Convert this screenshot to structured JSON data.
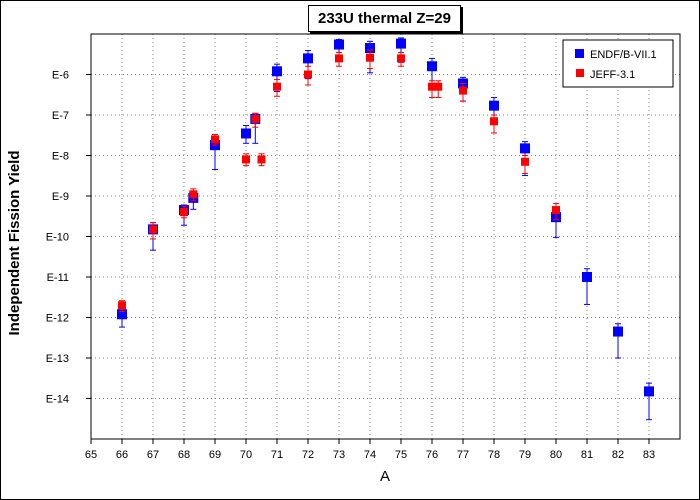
{
  "chart_data": {
    "type": "scatter",
    "title": "233U thermal Z=29",
    "xlabel": "A",
    "ylabel": "Independent Fission Yield",
    "y_scale": "log",
    "xlim": [
      65,
      84
    ],
    "ylim": [
      1e-15,
      1e-05
    ],
    "x_ticks": [
      65,
      66,
      67,
      68,
      69,
      70,
      71,
      72,
      73,
      74,
      75,
      76,
      77,
      78,
      79,
      80,
      81,
      82,
      83
    ],
    "y_ticks": [
      {
        "label": "E-6",
        "value": 1e-06
      },
      {
        "label": "E-7",
        "value": 1e-07
      },
      {
        "label": "E-8",
        "value": 1e-08
      },
      {
        "label": "E-9",
        "value": 1e-09
      },
      {
        "label": "E-10",
        "value": 1e-10
      },
      {
        "label": "E-11",
        "value": 1e-11
      },
      {
        "label": "E-12",
        "value": 1e-12
      },
      {
        "label": "E-13",
        "value": 1e-13
      },
      {
        "label": "E-14",
        "value": 1e-14
      }
    ],
    "grid": true,
    "legend_position": "top-right",
    "series": [
      {
        "name": "ENDF/B-VII.1",
        "color": "#0000ff",
        "marker": "square",
        "points": [
          {
            "x": 66,
            "y": 1.2e-12,
            "err_lo": 5.8e-13,
            "err_hi": 1.8e-12
          },
          {
            "x": 67,
            "y": 1.5e-10,
            "err_lo": 4.6e-11,
            "err_hi": 2.2e-10
          },
          {
            "x": 68,
            "y": 4.5e-10,
            "err_lo": 1.9e-10,
            "err_hi": 6e-10
          },
          {
            "x": 68.3,
            "y": 9e-10,
            "err_lo": 4.7e-10,
            "err_hi": 1.3e-09
          },
          {
            "x": 69,
            "y": 1.8e-08,
            "err_lo": 4.5e-09,
            "err_hi": 2.5e-08
          },
          {
            "x": 70,
            "y": 3.5e-08,
            "err_lo": 2e-08,
            "err_hi": 5.5e-08
          },
          {
            "x": 70.3,
            "y": 8e-08,
            "err_lo": 2e-08,
            "err_hi": 1.1e-07
          },
          {
            "x": 71,
            "y": 1.2e-06,
            "err_lo": 3.8e-07,
            "err_hi": 1.8e-06
          },
          {
            "x": 72,
            "y": 2.5e-06,
            "err_lo": 7.9e-07,
            "err_hi": 3.9e-06
          },
          {
            "x": 73,
            "y": 5.5e-06,
            "err_lo": 2.2e-06,
            "err_hi": 7.3e-06
          },
          {
            "x": 74,
            "y": 4.5e-06,
            "err_lo": 1.1e-06,
            "err_hi": 6.6e-06
          },
          {
            "x": 75,
            "y": 5.8e-06,
            "err_lo": 2e-06,
            "err_hi": 8e-06
          },
          {
            "x": 76,
            "y": 1.6e-06,
            "err_lo": 4.8e-07,
            "err_hi": 2.5e-06
          },
          {
            "x": 77,
            "y": 6e-07,
            "err_lo": 2.2e-07,
            "err_hi": 8.5e-07
          },
          {
            "x": 78,
            "y": 1.7e-07,
            "err_lo": 1e-07,
            "err_hi": 2.7e-07
          },
          {
            "x": 79,
            "y": 1.5e-08,
            "err_lo": 3.2e-09,
            "err_hi": 2.2e-08
          },
          {
            "x": 80,
            "y": 3e-10,
            "err_lo": 9.5e-11,
            "err_hi": 4.8e-10
          },
          {
            "x": 81,
            "y": 1e-11,
            "err_lo": 2.1e-12,
            "err_hi": 1.6e-11
          },
          {
            "x": 82,
            "y": 4.5e-13,
            "err_lo": 1e-13,
            "err_hi": 7e-13
          },
          {
            "x": 83,
            "y": 1.5e-14,
            "err_lo": 3e-15,
            "err_hi": 2.4e-14
          }
        ]
      },
      {
        "name": "JEFF-3.1",
        "color": "#ff0000",
        "marker": "square",
        "points": [
          {
            "x": 66,
            "y": 2e-12,
            "err_lo": 1.4e-12,
            "err_hi": 2.6e-12
          },
          {
            "x": 67,
            "y": 1.5e-10,
            "err_lo": 8.7e-11,
            "err_hi": 2.2e-10
          },
          {
            "x": 68,
            "y": 4e-10,
            "err_lo": 2.9e-10,
            "err_hi": 5.6e-10
          },
          {
            "x": 68.3,
            "y": 1.1e-09,
            "err_lo": 7.6e-10,
            "err_hi": 1.5e-09
          },
          {
            "x": 69,
            "y": 2.5e-08,
            "err_lo": 1.8e-08,
            "err_hi": 3.3e-08
          },
          {
            "x": 70,
            "y": 8e-09,
            "err_lo": 5.6e-09,
            "err_hi": 1.1e-08
          },
          {
            "x": 70.5,
            "y": 8e-09,
            "err_lo": 5.6e-09,
            "err_hi": 1.1e-08
          },
          {
            "x": 70.3,
            "y": 8e-08,
            "err_lo": 5e-08,
            "err_hi": 1.1e-07
          },
          {
            "x": 71,
            "y": 5e-07,
            "err_lo": 2.9e-07,
            "err_hi": 7.5e-07
          },
          {
            "x": 72,
            "y": 1e-06,
            "err_lo": 5.5e-07,
            "err_hi": 1.6e-06
          },
          {
            "x": 73,
            "y": 2.5e-06,
            "err_lo": 1.6e-06,
            "err_hi": 3.5e-06
          },
          {
            "x": 74,
            "y": 2.6e-06,
            "err_lo": 1.4e-06,
            "err_hi": 4e-06
          },
          {
            "x": 75,
            "y": 2.5e-06,
            "err_lo": 1.6e-06,
            "err_hi": 3.5e-06
          },
          {
            "x": 76,
            "y": 5e-07,
            "err_lo": 2.7e-07,
            "err_hi": 7e-07
          },
          {
            "x": 76.2,
            "y": 5e-07,
            "err_lo": 2.7e-07,
            "err_hi": 7e-07
          },
          {
            "x": 77,
            "y": 4e-07,
            "err_lo": 2.2e-07,
            "err_hi": 6e-07
          },
          {
            "x": 78,
            "y": 7e-08,
            "err_lo": 3.6e-08,
            "err_hi": 1e-07
          },
          {
            "x": 79,
            "y": 7e-09,
            "err_lo": 3.6e-09,
            "err_hi": 1e-08
          },
          {
            "x": 80,
            "y": 4.5e-10,
            "err_lo": 2.6e-10,
            "err_hi": 6.5e-10
          }
        ]
      }
    ]
  }
}
